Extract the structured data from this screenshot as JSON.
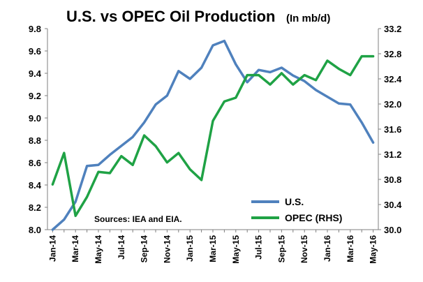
{
  "chart_data": {
    "type": "line",
    "title": "U.S. vs OPEC Oil Production",
    "subtitle": "(In mb/d)",
    "note": "Sources: IEA and EIA.",
    "grid": false,
    "legend_position": "bottom-right",
    "x": [
      "Jan-14",
      "Feb-14",
      "Mar-14",
      "Apr-14",
      "May-14",
      "Jun-14",
      "Jul-14",
      "Aug-14",
      "Sep-14",
      "Oct-14",
      "Nov-14",
      "Dec-14",
      "Jan-15",
      "Feb-15",
      "Mar-15",
      "Apr-15",
      "May-15",
      "Jun-15",
      "Jul-15",
      "Aug-15",
      "Sep-15",
      "Oct-15",
      "Nov-15",
      "Dec-15",
      "Jan-16",
      "Feb-16",
      "Mar-16",
      "Apr-16",
      "May-16"
    ],
    "x_tick_labels": [
      "Jan-14",
      "Mar-14",
      "May-14",
      "Jul-14",
      "Sep-14",
      "Nov-14",
      "Jan-15",
      "Mar-15",
      "May-15",
      "Jul-15",
      "Sep-15",
      "Nov-15",
      "Jan-16",
      "Mar-16",
      "May-16"
    ],
    "y_left": {
      "ylim": [
        8.0,
        9.8
      ],
      "ticks": [
        "8.0",
        "8.2",
        "8.4",
        "8.6",
        "8.8",
        "9.0",
        "9.2",
        "9.4",
        "9.6",
        "9.8"
      ]
    },
    "y_right": {
      "ylim": [
        30.0,
        33.2
      ],
      "ticks": [
        "30.0",
        "30.4",
        "30.8",
        "31.2",
        "31.6",
        "32.0",
        "32.4",
        "32.8",
        "33.2"
      ]
    },
    "series": [
      {
        "name": "U.S.",
        "axis": "left",
        "color": "#4f81bd",
        "values": [
          8.0,
          8.09,
          8.25,
          8.57,
          8.58,
          8.67,
          8.75,
          8.83,
          8.96,
          9.12,
          9.2,
          9.42,
          9.35,
          9.45,
          9.65,
          9.69,
          9.48,
          9.32,
          9.43,
          9.41,
          9.45,
          9.38,
          9.33,
          9.25,
          9.19,
          9.13,
          9.12,
          8.96,
          8.78
        ]
      },
      {
        "name": "OPEC (RHS)",
        "axis": "right",
        "color": "#1fa245",
        "values": [
          30.72,
          31.22,
          30.22,
          30.52,
          30.92,
          30.9,
          31.17,
          31.03,
          31.5,
          31.33,
          31.07,
          31.22,
          30.96,
          30.79,
          31.73,
          32.04,
          32.1,
          32.46,
          32.46,
          32.31,
          32.49,
          32.31,
          32.46,
          32.38,
          32.69,
          32.56,
          32.46,
          32.76,
          32.76
        ]
      }
    ]
  }
}
